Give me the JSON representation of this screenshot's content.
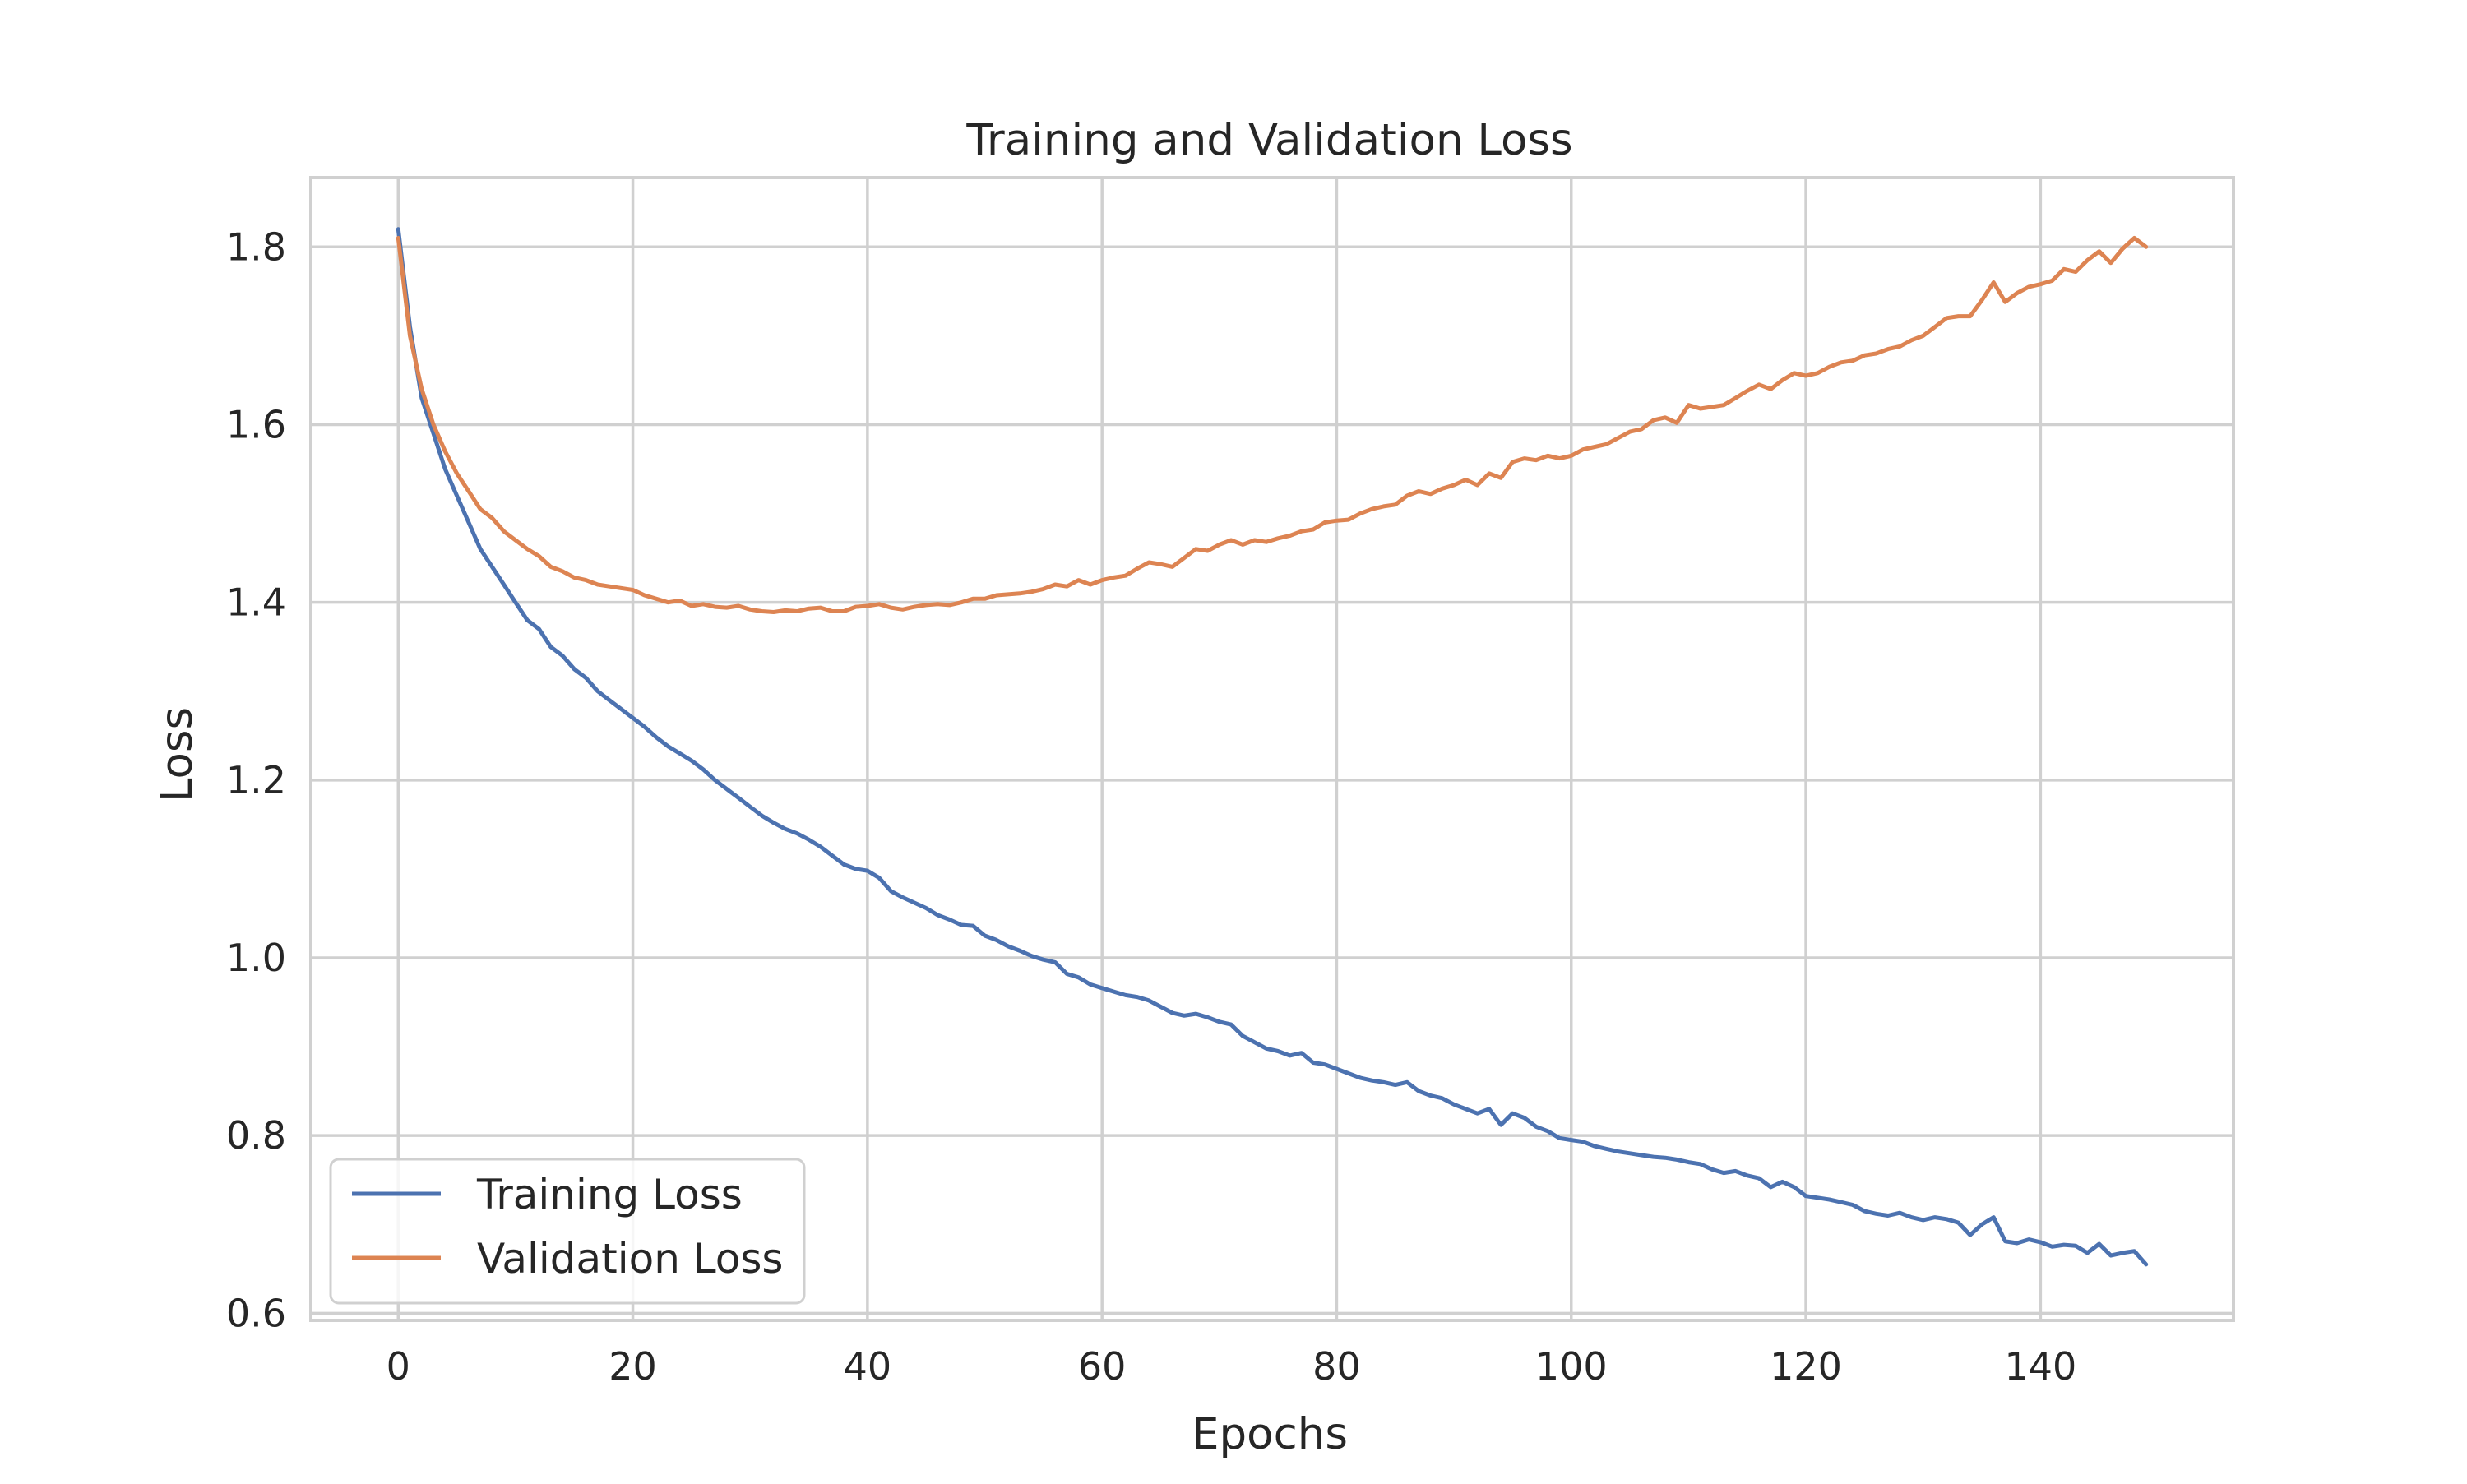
{
  "chart_data": {
    "type": "line",
    "title": "Training and Validation Loss",
    "xlabel": "Epochs",
    "ylabel": "Loss",
    "xlim": [
      -7.45,
      156.45
    ],
    "ylim": [
      0.592,
      1.878
    ],
    "xticks": [
      0,
      20,
      40,
      60,
      80,
      100,
      120,
      140
    ],
    "xtick_labels": [
      "0",
      "20",
      "40",
      "60",
      "80",
      "100",
      "120",
      "140"
    ],
    "yticks": [
      0.6,
      0.8,
      1.0,
      1.2,
      1.4,
      1.6,
      1.8
    ],
    "ytick_labels": [
      "0.6",
      "0.8",
      "1.0",
      "1.2",
      "1.4",
      "1.6",
      "1.8"
    ],
    "grid": true,
    "legend_position": "lower-left",
    "x": [
      0,
      1,
      2,
      3,
      4,
      5,
      6,
      7,
      8,
      9,
      10,
      11,
      12,
      13,
      14,
      15,
      16,
      17,
      18,
      19,
      20,
      21,
      22,
      23,
      24,
      25,
      26,
      27,
      28,
      29,
      30,
      31,
      32,
      33,
      34,
      35,
      36,
      37,
      38,
      39,
      40,
      41,
      42,
      43,
      44,
      45,
      46,
      47,
      48,
      49,
      50,
      51,
      52,
      53,
      54,
      55,
      56,
      57,
      58,
      59,
      60,
      61,
      62,
      63,
      64,
      65,
      66,
      67,
      68,
      69,
      70,
      71,
      72,
      73,
      74,
      75,
      76,
      77,
      78,
      79,
      80,
      81,
      82,
      83,
      84,
      85,
      86,
      87,
      88,
      89,
      90,
      91,
      92,
      93,
      94,
      95,
      96,
      97,
      98,
      99,
      100,
      101,
      102,
      103,
      104,
      105,
      106,
      107,
      108,
      109,
      110,
      111,
      112,
      113,
      114,
      115,
      116,
      117,
      118,
      119,
      120,
      121,
      122,
      123,
      124,
      125,
      126,
      127,
      128,
      129,
      130,
      131,
      132,
      133,
      134,
      135,
      136,
      137,
      138,
      139,
      140,
      141,
      142,
      143,
      144,
      145,
      146,
      147,
      148,
      149
    ],
    "series": [
      {
        "name": "Training Loss",
        "color": "#4c72b0",
        "values": [
          1.82,
          1.71,
          1.63,
          1.59,
          1.55,
          1.52,
          1.49,
          1.46,
          1.44,
          1.42,
          1.4,
          1.38,
          1.37,
          1.35,
          1.34,
          1.325,
          1.315,
          1.3,
          1.29,
          1.28,
          1.27,
          1.26,
          1.248,
          1.238,
          1.23,
          1.222,
          1.212,
          1.2,
          1.19,
          1.18,
          1.17,
          1.16,
          1.152,
          1.145,
          1.14,
          1.133,
          1.125,
          1.115,
          1.105,
          1.1,
          1.098,
          1.09,
          1.075,
          1.068,
          1.062,
          1.056,
          1.048,
          1.043,
          1.037,
          1.036,
          1.025,
          1.02,
          1.013,
          1.008,
          1.002,
          0.998,
          0.995,
          0.982,
          0.978,
          0.97,
          0.966,
          0.962,
          0.958,
          0.956,
          0.952,
          0.945,
          0.938,
          0.935,
          0.937,
          0.933,
          0.928,
          0.925,
          0.912,
          0.905,
          0.898,
          0.895,
          0.89,
          0.893,
          0.882,
          0.88,
          0.875,
          0.87,
          0.865,
          0.862,
          0.86,
          0.857,
          0.86,
          0.85,
          0.845,
          0.842,
          0.835,
          0.83,
          0.825,
          0.83,
          0.812,
          0.825,
          0.82,
          0.81,
          0.805,
          0.797,
          0.795,
          0.793,
          0.788,
          0.785,
          0.782,
          0.78,
          0.778,
          0.776,
          0.775,
          0.773,
          0.77,
          0.768,
          0.762,
          0.758,
          0.76,
          0.755,
          0.752,
          0.742,
          0.748,
          0.742,
          0.732,
          0.73,
          0.728,
          0.725,
          0.722,
          0.715,
          0.712,
          0.71,
          0.713,
          0.708,
          0.705,
          0.708,
          0.706,
          0.702,
          0.688,
          0.7,
          0.708,
          0.681,
          0.679,
          0.683,
          0.68,
          0.675,
          0.677,
          0.676,
          0.668,
          0.678,
          0.665,
          0.668,
          0.67,
          0.655
        ]
      },
      {
        "name": "Validation Loss",
        "color": "#dd8452",
        "values": [
          1.81,
          1.7,
          1.64,
          1.6,
          1.57,
          1.545,
          1.525,
          1.505,
          1.495,
          1.48,
          1.47,
          1.46,
          1.452,
          1.44,
          1.435,
          1.428,
          1.425,
          1.42,
          1.418,
          1.416,
          1.414,
          1.408,
          1.404,
          1.4,
          1.402,
          1.396,
          1.398,
          1.395,
          1.394,
          1.396,
          1.392,
          1.39,
          1.389,
          1.391,
          1.39,
          1.393,
          1.394,
          1.39,
          1.39,
          1.395,
          1.396,
          1.398,
          1.394,
          1.392,
          1.395,
          1.397,
          1.398,
          1.397,
          1.4,
          1.404,
          1.404,
          1.408,
          1.409,
          1.41,
          1.412,
          1.415,
          1.42,
          1.418,
          1.425,
          1.42,
          1.425,
          1.428,
          1.43,
          1.438,
          1.445,
          1.443,
          1.44,
          1.45,
          1.46,
          1.458,
          1.465,
          1.47,
          1.465,
          1.47,
          1.468,
          1.472,
          1.475,
          1.48,
          1.482,
          1.49,
          1.492,
          1.493,
          1.5,
          1.505,
          1.508,
          1.51,
          1.52,
          1.525,
          1.522,
          1.528,
          1.532,
          1.538,
          1.532,
          1.545,
          1.54,
          1.558,
          1.562,
          1.56,
          1.565,
          1.562,
          1.565,
          1.572,
          1.575,
          1.578,
          1.585,
          1.592,
          1.595,
          1.605,
          1.608,
          1.602,
          1.622,
          1.618,
          1.62,
          1.622,
          1.63,
          1.638,
          1.645,
          1.64,
          1.65,
          1.658,
          1.655,
          1.658,
          1.665,
          1.67,
          1.672,
          1.678,
          1.68,
          1.685,
          1.688,
          1.695,
          1.7,
          1.71,
          1.72,
          1.722,
          1.722,
          1.74,
          1.76,
          1.738,
          1.748,
          1.755,
          1.758,
          1.762,
          1.775,
          1.772,
          1.785,
          1.795,
          1.782,
          1.798,
          1.81,
          1.8
        ]
      }
    ]
  }
}
